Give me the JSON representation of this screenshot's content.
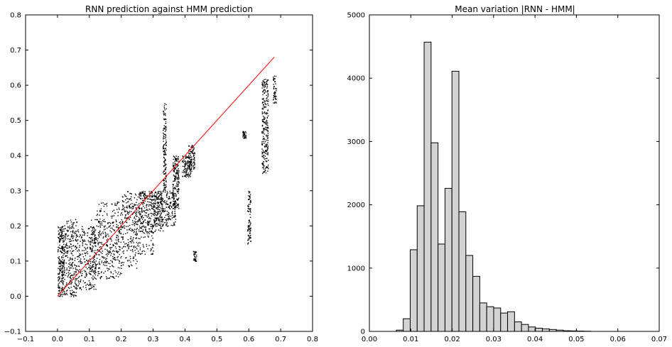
{
  "chart_data": [
    {
      "type": "scatter",
      "title": "RNN prediction against HMM prediction",
      "xlabel": "",
      "ylabel": "",
      "xlim": [
        -0.1,
        0.8
      ],
      "ylim": [
        -0.1,
        0.8
      ],
      "xticks": [
        "−0.1",
        "0.0",
        "0.1",
        "0.2",
        "0.3",
        "0.4",
        "0.5",
        "0.6",
        "0.7",
        "0.8"
      ],
      "yticks": [
        "−0.1",
        "0.0",
        "0.1",
        "0.2",
        "0.3",
        "0.4",
        "0.5",
        "0.6",
        "0.7",
        "0.8"
      ],
      "point_color": "#000000",
      "reference_line": {
        "x": [
          0.0,
          0.68
        ],
        "y": [
          0.0,
          0.68
        ],
        "color": "#ff0000"
      },
      "clusters": [
        {
          "x": [
            0.0,
            0.02
          ],
          "y": [
            0.0,
            0.2
          ]
        },
        {
          "x": [
            0.02,
            0.06
          ],
          "y": [
            0.0,
            0.22
          ]
        },
        {
          "x": [
            0.06,
            0.12
          ],
          "y": [
            0.02,
            0.2
          ]
        },
        {
          "x": [
            0.1,
            0.2
          ],
          "y": [
            0.05,
            0.22
          ]
        },
        {
          "x": [
            0.12,
            0.25
          ],
          "y": [
            0.08,
            0.27
          ]
        },
        {
          "x": [
            0.2,
            0.3
          ],
          "y": [
            0.12,
            0.3
          ]
        },
        {
          "x": [
            0.25,
            0.33
          ],
          "y": [
            0.18,
            0.3
          ]
        },
        {
          "x": [
            0.3,
            0.37
          ],
          "y": [
            0.2,
            0.3
          ]
        },
        {
          "x": [
            0.33,
            0.34
          ],
          "y": [
            0.3,
            0.55
          ]
        },
        {
          "x": [
            0.36,
            0.38
          ],
          "y": [
            0.25,
            0.4
          ]
        },
        {
          "x": [
            0.39,
            0.42
          ],
          "y": [
            0.34,
            0.4
          ]
        },
        {
          "x": [
            0.41,
            0.43
          ],
          "y": [
            0.36,
            0.43
          ]
        },
        {
          "x": [
            0.425,
            0.435
          ],
          "y": [
            0.1,
            0.13
          ]
        },
        {
          "x": [
            0.595,
            0.605
          ],
          "y": [
            0.15,
            0.3
          ]
        },
        {
          "x": [
            0.58,
            0.59
          ],
          "y": [
            0.45,
            0.47
          ]
        },
        {
          "x": [
            0.64,
            0.66
          ],
          "y": [
            0.35,
            0.62
          ]
        },
        {
          "x": [
            0.675,
            0.685
          ],
          "y": [
            0.55,
            0.63
          ]
        }
      ]
    },
    {
      "type": "bar",
      "title": "Mean variation |RNN - HMM|",
      "xlabel": "",
      "ylabel": "",
      "xlim": [
        0.0,
        0.07
      ],
      "ylim": [
        0,
        5000
      ],
      "xticks": [
        "0.00",
        "0.01",
        "0.02",
        "0.03",
        "0.04",
        "0.05",
        "0.06",
        "0.07"
      ],
      "yticks": [
        "0",
        "1000",
        "2000",
        "3000",
        "4000",
        "5000"
      ],
      "bar_color": "#d3d3d3",
      "edge_color": "#000000",
      "bin_start": 0.0065,
      "bin_width": 0.00168,
      "values": [
        20,
        200,
        1290,
        1985,
        4570,
        2980,
        1380,
        2260,
        4110,
        1890,
        1200,
        870,
        450,
        390,
        370,
        290,
        310,
        150,
        110,
        70,
        50,
        40,
        30,
        20,
        10,
        8,
        5,
        3
      ]
    }
  ]
}
